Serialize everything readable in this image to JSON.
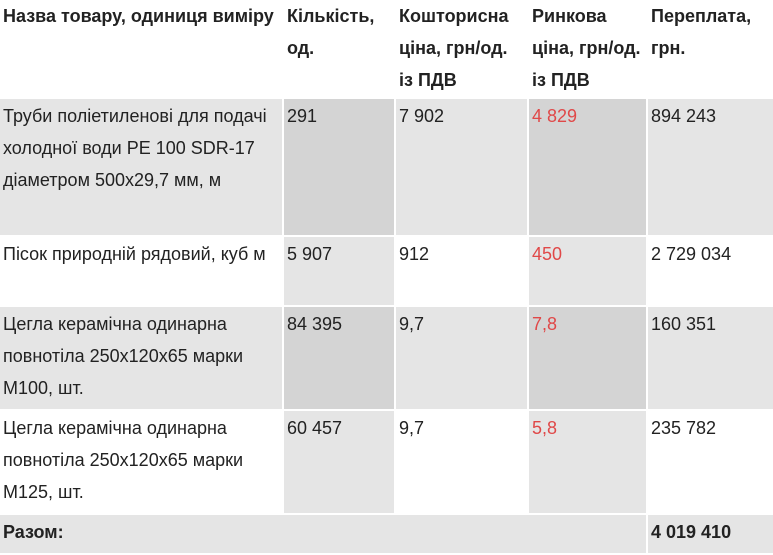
{
  "table": {
    "headers": [
      "Назва товару, одиниця виміру",
      "Кількість, од.",
      "Кошторисна ціна, грн/од. із ПДВ",
      "Ринкова ціна, грн/од. із ПДВ",
      "Переплата, грн."
    ],
    "rows": [
      {
        "name": "Труби поліетиленові для подачі холодної води PE 100 SDR-17 діаметром 500х29,7 мм, м",
        "quantity": "291",
        "estimate_price": "7 902",
        "market_price": "4 829",
        "overpayment": "894 243"
      },
      {
        "name": "Пісок природній рядовий, куб м",
        "quantity": "5 907",
        "estimate_price": "912",
        "market_price": "450",
        "overpayment": "2 729 034"
      },
      {
        "name": "Цегла керамічна одинарна повнотіла 250х120х65 марки М100, шт.",
        "quantity": "84 395",
        "estimate_price": "9,7",
        "market_price": "7,8",
        "overpayment": "160 351"
      },
      {
        "name": "Цегла керамічна одинарна повнотіла 250х120х65 марки М125, шт.",
        "quantity": "60 457",
        "estimate_price": "9,7",
        "market_price": "5,8",
        "overpayment": "235 782"
      }
    ],
    "total": {
      "label": "Разом:",
      "value": "4 019 410"
    }
  },
  "colors": {
    "market_price_text": "#e04848",
    "shade_light": "#e5e5e5",
    "shade_dark": "#d4d4d4"
  }
}
